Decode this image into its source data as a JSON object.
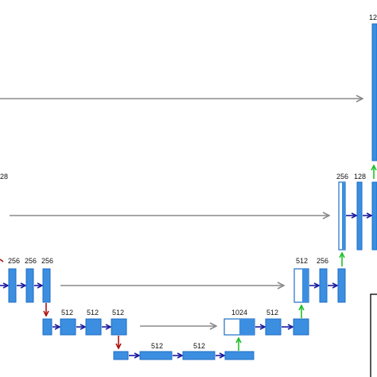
{
  "colors": {
    "block_fill": "#3b8ee0",
    "block_stroke": "#1f6fc4",
    "skip_arrow": "#8a8a8a",
    "conv_arrow": "#1a1aa0",
    "pool_arrow": "#b01010",
    "upconv_arrow": "#22c02a",
    "open_block_fill": "#ffffff"
  },
  "labels": {
    "top_right": "12",
    "level2_left": "28",
    "level2_right_256": "256",
    "level2_right_128": "128",
    "level3_256_a": "256",
    "level3_256_b": "256",
    "level3_256_c": "256",
    "level3_right_512": "512",
    "level3_right_256": "256",
    "level4_512_a": "512",
    "level4_512_b": "512",
    "level4_512_c": "512",
    "level4_right_1024": "1024",
    "level4_right_512": "512",
    "level5_512_a": "512",
    "level5_512_b": "512"
  },
  "icons": {
    "skip": "skip-connection-arrow",
    "conv": "conv-arrow",
    "pool": "max-pool-arrow",
    "up": "up-conv-arrow"
  }
}
